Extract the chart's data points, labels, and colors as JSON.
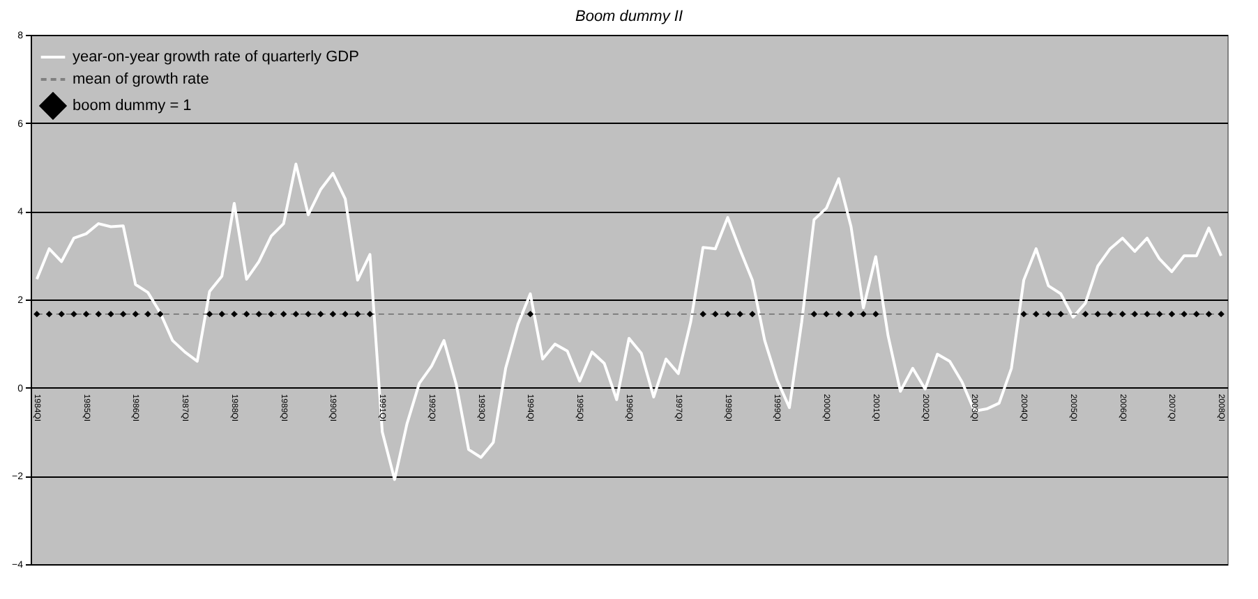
{
  "chart_data": {
    "type": "line",
    "title": "Boom dummy II",
    "categories": [
      "1984QI",
      null,
      null,
      null,
      "1985QI",
      null,
      null,
      null,
      "1986QI",
      null,
      null,
      null,
      "1987QI",
      null,
      null,
      null,
      "1988QI",
      null,
      null,
      null,
      "1989QI",
      null,
      null,
      null,
      "1990QI",
      null,
      null,
      null,
      "1991QI",
      null,
      null,
      null,
      "1992QI",
      null,
      null,
      null,
      "1993QI",
      null,
      null,
      null,
      "1994QI",
      null,
      null,
      null,
      "1995QI",
      null,
      null,
      null,
      "1996QI",
      null,
      null,
      null,
      "1997QI",
      null,
      null,
      null,
      "1998QI",
      null,
      null,
      null,
      "1999QI",
      null,
      null,
      null,
      "2000QI",
      null,
      null,
      null,
      "2001QI",
      null,
      null,
      null,
      "2002QI",
      null,
      null,
      null,
      "2003QI",
      null,
      null,
      null,
      "2004QI",
      null,
      null,
      null,
      "2005QI",
      null,
      null,
      null,
      "2006QI",
      null,
      null,
      null,
      "2007QI",
      null,
      null,
      null,
      "2008QI"
    ],
    "series": [
      {
        "name": "year-on-year growth rate of quarterly GDP",
        "line_style": "solid",
        "color": "#ffffff",
        "values": [
          2.46,
          3.15,
          2.86,
          3.39,
          3.49,
          3.72,
          3.65,
          3.67,
          2.34,
          2.16,
          1.7,
          1.07,
          0.81,
          0.6,
          2.18,
          2.53,
          4.18,
          2.46,
          2.86,
          3.44,
          3.72,
          5.07,
          3.92,
          4.49,
          4.86,
          4.28,
          2.44,
          3.02,
          -1.0,
          -2.08,
          -0.82,
          0.1,
          0.49,
          1.07,
          0.07,
          -1.4,
          -1.58,
          -1.24,
          0.44,
          1.44,
          2.13,
          0.65,
          0.99,
          0.83,
          0.15,
          0.81,
          0.55,
          -0.27,
          1.12,
          0.78,
          -0.21,
          0.65,
          0.32,
          1.49,
          3.18,
          3.15,
          3.86,
          3.13,
          2.44,
          1.07,
          0.18,
          -0.45,
          1.49,
          3.81,
          4.07,
          4.74,
          3.65,
          1.81,
          2.97,
          1.18,
          -0.08,
          0.44,
          -0.03,
          0.76,
          0.6,
          0.13,
          -0.53,
          -0.48,
          -0.35,
          0.44,
          2.44,
          3.15,
          2.31,
          2.13,
          1.6,
          1.92,
          2.76,
          3.15,
          3.39,
          3.09,
          3.39,
          2.92,
          2.63,
          2.99,
          2.99,
          3.62,
          2.99
        ]
      },
      {
        "name": "mean of growth rate",
        "line_style": "dashed",
        "color": "#808080",
        "values": [
          1.67,
          1.67,
          1.67,
          1.67,
          1.67,
          1.67,
          1.67,
          1.67,
          1.67,
          1.67,
          1.67,
          1.67,
          1.67,
          1.67,
          1.67,
          1.67,
          1.67,
          1.67,
          1.67,
          1.67,
          1.67,
          1.67,
          1.67,
          1.67,
          1.67,
          1.67,
          1.67,
          1.67,
          1.67,
          1.67,
          1.67,
          1.67,
          1.67,
          1.67,
          1.67,
          1.67,
          1.67,
          1.67,
          1.67,
          1.67,
          1.67,
          1.67,
          1.67,
          1.67,
          1.67,
          1.67,
          1.67,
          1.67,
          1.67,
          1.67,
          1.67,
          1.67,
          1.67,
          1.67,
          1.67,
          1.67,
          1.67,
          1.67,
          1.67,
          1.67,
          1.67,
          1.67,
          1.67,
          1.67,
          1.67,
          1.67,
          1.67,
          1.67,
          1.67,
          1.67,
          1.67,
          1.67,
          1.67,
          1.67,
          1.67,
          1.67,
          1.67,
          1.67,
          1.67,
          1.67,
          1.67,
          1.67,
          1.67,
          1.67,
          1.67,
          1.67,
          1.67,
          1.67,
          1.67,
          1.67,
          1.67,
          1.67,
          1.67,
          1.67,
          1.67,
          1.67,
          1.67
        ]
      },
      {
        "name": "boom dummy = 1",
        "type": "scatter",
        "marker": "diamond",
        "color": "#000000",
        "values": [
          1.67,
          1.67,
          1.67,
          1.67,
          1.67,
          1.67,
          1.67,
          1.67,
          1.67,
          1.67,
          1.67,
          null,
          null,
          null,
          1.67,
          1.67,
          1.67,
          1.67,
          1.67,
          1.67,
          1.67,
          1.67,
          1.67,
          1.67,
          1.67,
          1.67,
          1.67,
          1.67,
          null,
          null,
          null,
          null,
          null,
          null,
          null,
          null,
          null,
          null,
          null,
          null,
          1.67,
          null,
          null,
          null,
          null,
          null,
          null,
          null,
          null,
          null,
          null,
          null,
          null,
          null,
          1.67,
          1.67,
          1.67,
          1.67,
          1.67,
          null,
          null,
          null,
          null,
          1.67,
          1.67,
          1.67,
          1.67,
          1.67,
          1.67,
          null,
          null,
          null,
          null,
          null,
          null,
          null,
          null,
          null,
          null,
          null,
          1.67,
          1.67,
          1.67,
          1.67,
          null,
          1.67,
          1.67,
          1.67,
          1.67,
          1.67,
          1.67,
          1.67,
          1.67,
          1.67,
          1.67,
          1.67,
          1.67
        ]
      }
    ],
    "ylim": [
      -4,
      8
    ],
    "yticks": [
      -4,
      -2,
      0,
      2,
      4,
      6,
      8
    ],
    "grid": "y",
    "legend": "top left"
  }
}
